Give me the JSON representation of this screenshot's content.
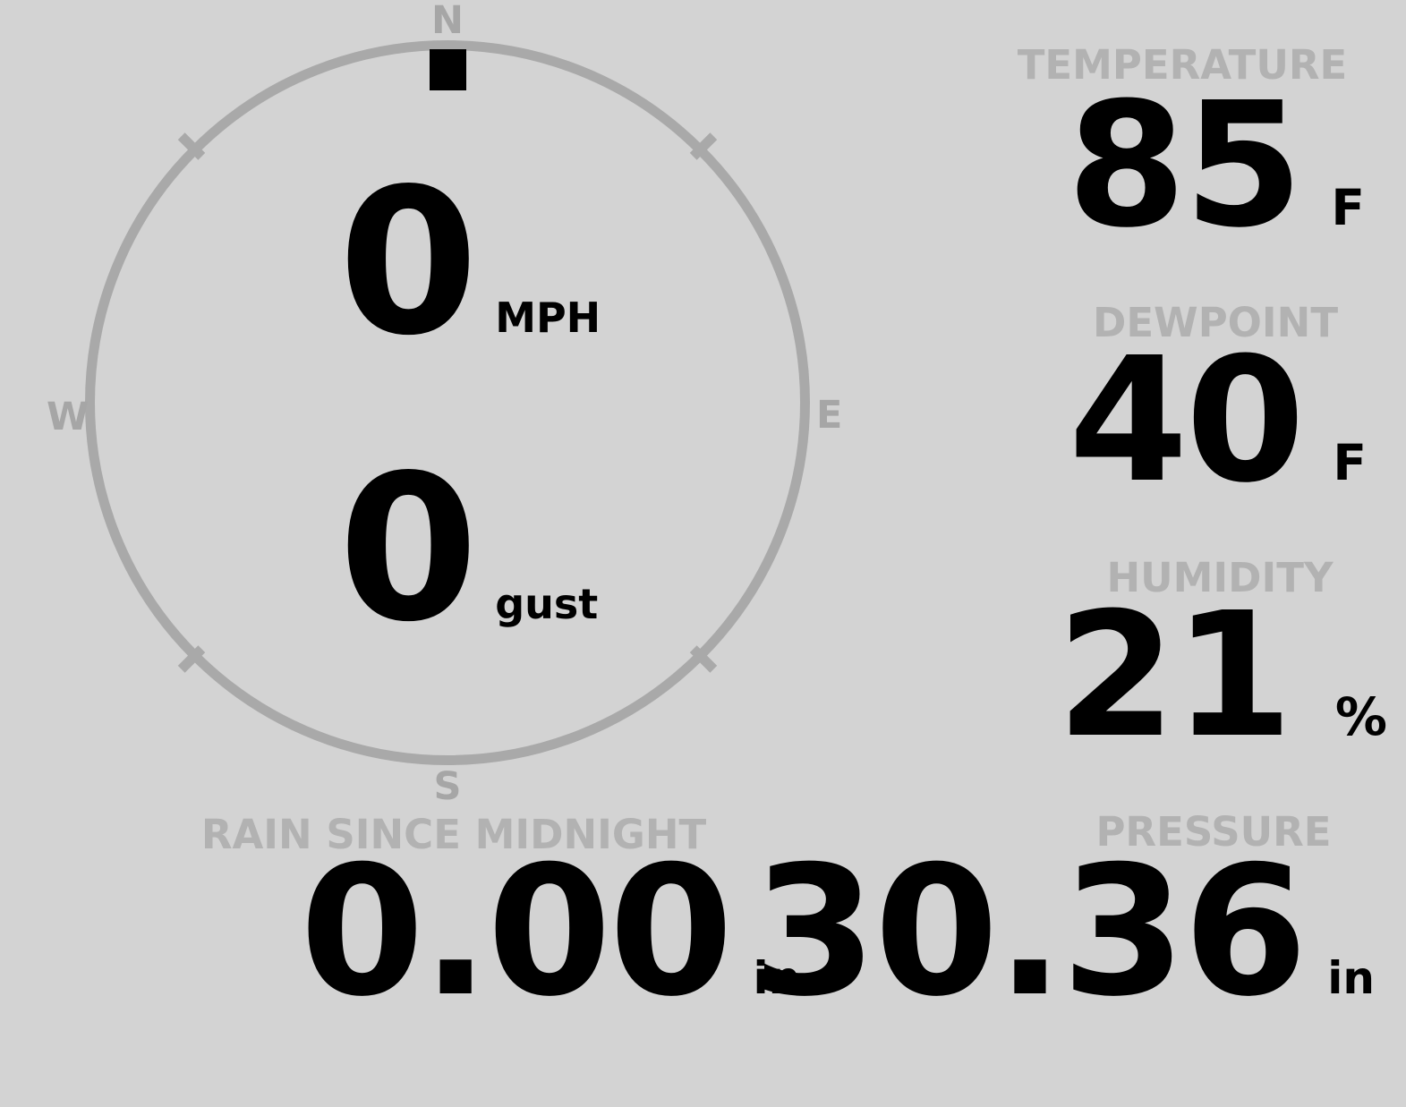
{
  "colors": {
    "background": "#d3d3d3",
    "ring": "#a9a9a9",
    "compass_letters": "#a6a6a6",
    "headings": "#b2b2b2",
    "values": "#000000",
    "wind_marker": "#000000"
  },
  "wind": {
    "compass": {
      "north": "N",
      "east": "E",
      "south": "S",
      "west": "W"
    },
    "speed": {
      "value": "0",
      "unit": "MPH"
    },
    "gust": {
      "value": "0",
      "unit": "gust"
    }
  },
  "metrics": {
    "temperature": {
      "label": "TEMPERATURE",
      "value": "85",
      "unit": "F"
    },
    "dewpoint": {
      "label": "DEWPOINT",
      "value": "40",
      "unit": "F"
    },
    "humidity": {
      "label": "HUMIDITY",
      "value": "21",
      "unit": "%"
    },
    "rain": {
      "label": "RAIN SINCE MIDNIGHT",
      "value": "0.00",
      "unit": "in"
    },
    "pressure": {
      "label": "PRESSURE",
      "value": "30.36",
      "unit": "in"
    }
  }
}
